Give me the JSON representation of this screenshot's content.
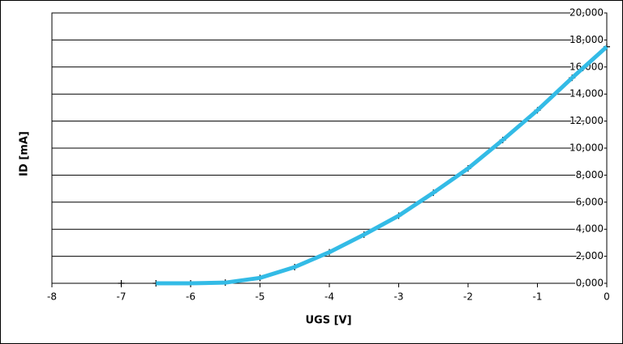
{
  "chart_data": {
    "type": "scatter",
    "xlabel": "UGS [V]",
    "ylabel": "ID [mA]",
    "x": [
      -7,
      -6.5,
      -6,
      -5.5,
      -5,
      -4.5,
      -4,
      -3.5,
      -3,
      -2.5,
      -2,
      -1.5,
      -1,
      -0.5,
      0
    ],
    "series": [
      {
        "color": "#000000",
        "marker": "+",
        "values": [
          0,
          0,
          0,
          0.05,
          0.4,
          1.2,
          2.3,
          3.6,
          5.0,
          6.7,
          8.5,
          10.6,
          12.8,
          15.2,
          17.5
        ]
      },
      {
        "color": "#33bbe6",
        "marker": "line",
        "values": [
          null,
          0,
          0,
          0.05,
          0.4,
          1.2,
          2.3,
          3.6,
          5.0,
          6.7,
          8.5,
          10.6,
          12.8,
          15.2,
          17.5
        ]
      }
    ],
    "xlim": [
      -8,
      0
    ],
    "xticks": [
      -8,
      -7,
      -6,
      -5,
      -4,
      -3,
      -2,
      -1,
      0
    ],
    "ylim": [
      0,
      20
    ],
    "yticks": [
      {
        "value": 0,
        "label": "0,000"
      },
      {
        "value": 2,
        "label": "2,000"
      },
      {
        "value": 4,
        "label": "4,000"
      },
      {
        "value": 6,
        "label": "6,000"
      },
      {
        "value": 8,
        "label": "8,000"
      },
      {
        "value": 10,
        "label": "10,000"
      },
      {
        "value": 12,
        "label": "12,000"
      },
      {
        "value": 14,
        "label": "14,000"
      },
      {
        "value": 16,
        "label": "16,000"
      },
      {
        "value": 18,
        "label": "18,000"
      },
      {
        "value": 20,
        "label": "20,000"
      }
    ],
    "grid": true
  }
}
